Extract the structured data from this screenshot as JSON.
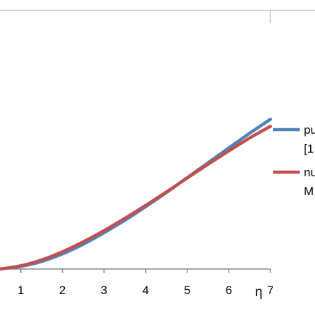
{
  "chart_data": {
    "type": "line",
    "xlabel": "η",
    "ylabel": "",
    "xlim": [
      0.5,
      7
    ],
    "ylim": [
      0,
      1.2
    ],
    "x_ticks": [
      "1",
      "2",
      "3",
      "4",
      "5",
      "6",
      "7"
    ],
    "grid": false,
    "legend_position": "right",
    "series": [
      {
        "name": "pu [1",
        "name_lines": [
          "pu",
          "[1"
        ],
        "color": "#4f81bd",
        "x": [
          0.5,
          1,
          1.5,
          2,
          2.5,
          3,
          3.5,
          4,
          4.5,
          5,
          5.5,
          6,
          6.5,
          7
        ],
        "y": [
          0.0,
          0.012,
          0.035,
          0.07,
          0.115,
          0.168,
          0.226,
          0.289,
          0.355,
          0.424,
          0.493,
          0.562,
          0.63,
          0.695
        ]
      },
      {
        "name": "nu M",
        "name_lines": [
          "nu",
          "M"
        ],
        "color": "#c0504d",
        "x": [
          0.5,
          1,
          1.5,
          2,
          2.5,
          3,
          3.5,
          4,
          4.5,
          5,
          5.5,
          6,
          6.5,
          7
        ],
        "y": [
          0.0,
          0.015,
          0.042,
          0.08,
          0.126,
          0.178,
          0.235,
          0.295,
          0.358,
          0.422,
          0.486,
          0.548,
          0.608,
          0.662
        ]
      }
    ]
  }
}
